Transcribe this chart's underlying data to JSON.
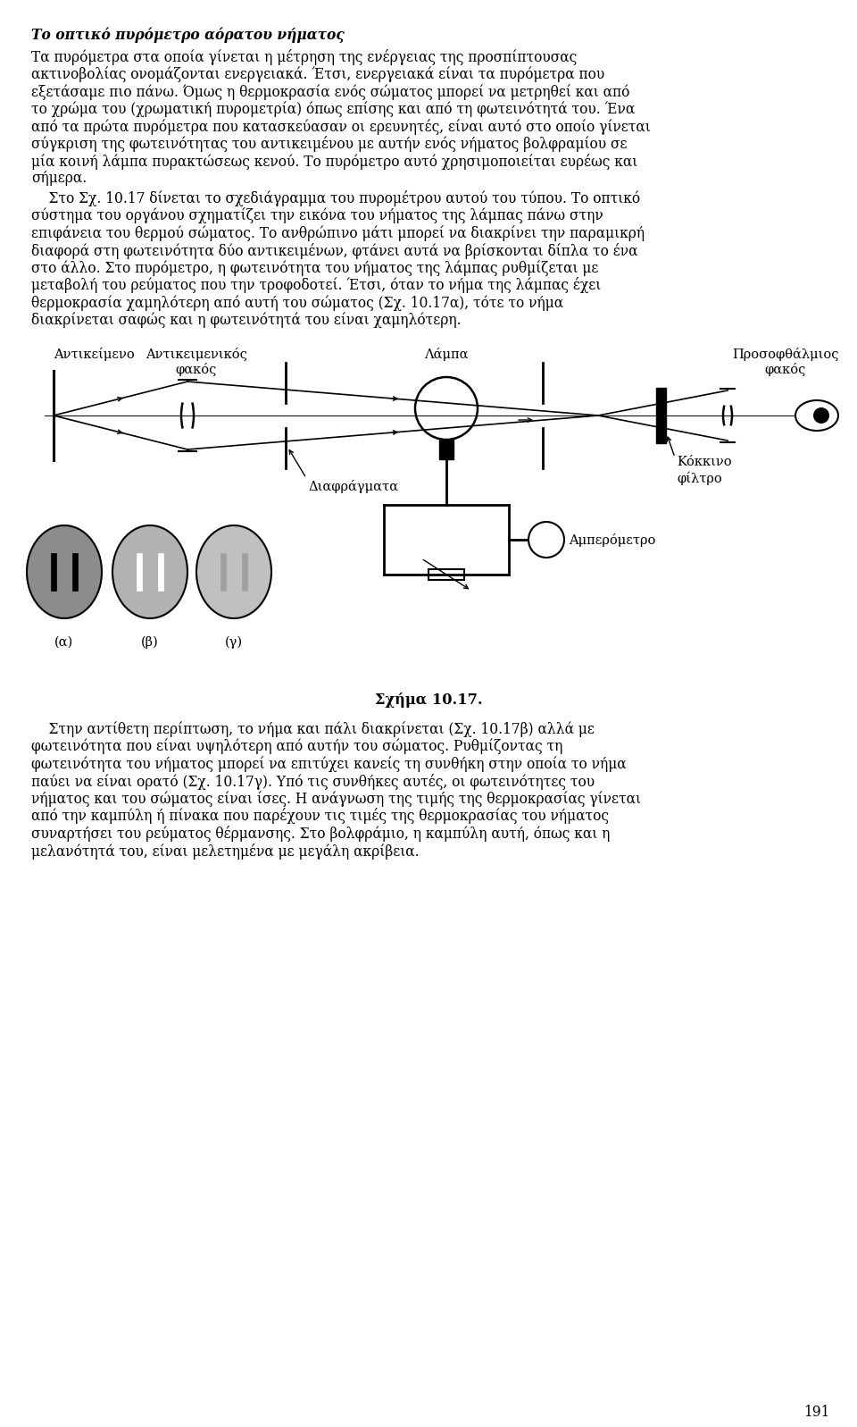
{
  "title_text": "Το οπτικό πυρόμετρο αόρατου νήματος",
  "page_number": "191",
  "bg_color": "#ffffff",
  "text_color": "#000000",
  "labels": {
    "antikimeno": "Αντικείμενο",
    "antikeimenikos": "Αντικειμενικός",
    "fakos": "φακός",
    "lampa": "Λάμπα",
    "prosofthalmios": "Προσοφθάλμιος",
    "diafragmata": "Διαφράγματα",
    "kokkino": "Κόκκινο",
    "filtro": "φίλτρο",
    "amperometro": "Αμπερόμετρο",
    "alpha": "(α)",
    "beta": "(β)",
    "gamma": "(γ)"
  },
  "p1_lines": [
    "Τα πυρόμετρα στα οποία γίνεται η μέτρηση της ενέργειας της προσπίπτουσας",
    "ακτινοβολίας ονομάζονται ενεργειακά. Έτσι, ενεργειακά είναι τα πυρόμετρα που",
    "εξετάσαμε πιο πάνω. Όμως η θερμοκρασία ενός σώματος μπορεί να μετρηθεί και από",
    "το χρώμα του (χρωματική πυρομετρία) όπως επίσης και από τη φωτεινότητά του. Ένα",
    "από τα πρώτα πυρόμετρα που κατασκεύασαν οι ερευνητές, είναι αυτό στο οποίο γίνεται",
    "σύγκριση της φωτεινότητας του αντικειμένου με αυτήν ενός νήματος βολφραμίου σε",
    "μία κοινή λάμπα πυρακτώσεως κενού. Το πυρόμετρο αυτό χρησιμοποιείται ευρέως και",
    "σήμερα."
  ],
  "p2_lines": [
    "    Στο Σχ. 10.17 δίνεται το σχεδιάγραμμα του πυρομέτρου αυτού του τύπου. Το οπτικό",
    "σύστημα του οργάνου σχηματίζει την εικόνα του νήματος της λάμπας πάνω στην",
    "επιφάνεια του θερμού σώματος. Το ανθρώπινο μάτι μπορεί να διακρίνει την παραμικρή",
    "διαφορά στη φωτεινότητα δύο αντικειμένων, φτάνει αυτά να βρίσκονται δίπλα το ένα",
    "στο άλλο. Στο πυρόμετρο, η φωτεινότητα του νήματος της λάμπας ρυθμίζεται με",
    "μεταβολή του ρεύματος που την τροφοδοτεί. Έτσι, όταν το νήμα της λάμπας έχει",
    "θερμοκρασία χαμηλότερη από αυτή του σώματος (Σχ. 10.17α), τότε το νήμα",
    "διακρίνεται σαφώς και η φωτεινότητά του είναι χαμηλότερη."
  ],
  "schema_label": "Σχήμα 10.17.",
  "p3_lines": [
    "    Στην αντίθετη περίπτωση, το νήμα και πάλι διακρίνεται (Σχ. 10.17β) αλλά με",
    "φωτεινότητα που είναι υψηλότερη από αυτήν του σώματος. Ρυθμίζοντας τη",
    "φωτεινότητα του νήματος μπορεί να επιτύχει κανείς τη συνθήκη στην οποία το νήμα",
    "παύει να είναι ορατό (Σχ. 10.17γ). Υπό τις συνθήκες αυτές, οι φωτεινότητες του",
    "νήματος και του σώματος είναι ίσες. Η ανάγνωση της τιμής της θερμοκρασίας γίνεται",
    "από την καμπύλη ή πίνακα που παρέχουν τις τιμές της θερμοκρασίας του νήματος",
    "συναρτήσει του ρεύματος θέρμανσης. Στο βολφράμιο, η καμπύλη αυτή, όπως και η",
    "μελανότητά του, είναι μελετημένα με μεγάλη ακρίβεια."
  ]
}
